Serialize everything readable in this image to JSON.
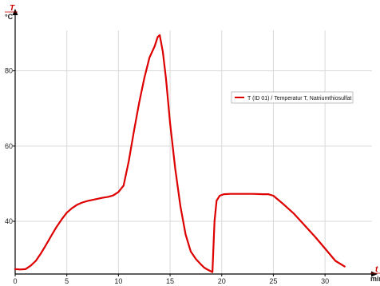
{
  "chart_data": {
    "type": "line",
    "title": "",
    "xlim": [
      0,
      32
    ],
    "ylim": [
      26,
      95
    ],
    "x_ticks": [
      0,
      5,
      10,
      15,
      20,
      25,
      30
    ],
    "y_ticks": [
      40,
      60,
      80
    ],
    "grid": true,
    "legend_placement": "right",
    "y_axis": {
      "variable": "T",
      "unit": "°C"
    },
    "x_axis": {
      "variable": "t",
      "unit": "min"
    },
    "series": [
      {
        "name": "T (ID 01) / Temperatur T, Natriumthiosulfat",
        "color": "#dd0000",
        "x": [
          0,
          0.5,
          1,
          1.5,
          2,
          2.5,
          3,
          3.5,
          4,
          4.5,
          5,
          5.5,
          6,
          6.5,
          7,
          7.5,
          8,
          8.5,
          9,
          9.5,
          10,
          10.5,
          11,
          11.5,
          12,
          12.5,
          13,
          13.5,
          13.8,
          14,
          14.3,
          14.6,
          15,
          15.5,
          16,
          16.5,
          17,
          17.5,
          18,
          18.3,
          18.6,
          18.9,
          19.1,
          19.3,
          19.5,
          19.8,
          20.2,
          20.8,
          21.5,
          22,
          23,
          24,
          24.5,
          25,
          26,
          27,
          28,
          29,
          30,
          31,
          31.9
        ],
        "y": [
          27.3,
          27.2,
          27.3,
          28.2,
          29.5,
          31.5,
          33.8,
          36.2,
          38.5,
          40.5,
          42.3,
          43.5,
          44.4,
          45.0,
          45.4,
          45.7,
          46.0,
          46.3,
          46.5,
          46.9,
          47.8,
          49.5,
          56,
          64,
          71.5,
          78,
          83.5,
          86.5,
          89,
          89.5,
          85,
          78,
          66,
          54,
          44,
          36.5,
          32,
          30,
          28.5,
          27.7,
          27.2,
          26.8,
          26.5,
          40,
          45.5,
          46.8,
          47.2,
          47.3,
          47.3,
          47.3,
          47.3,
          47.2,
          47.2,
          46.8,
          44.5,
          42.0,
          39.0,
          36.0,
          32.8,
          29.5,
          28.0
        ]
      }
    ]
  },
  "colors": {
    "series": "#dd0000",
    "axis": "#000000",
    "grid": "#d9d9d9",
    "axis_variable": "#cc0000"
  }
}
